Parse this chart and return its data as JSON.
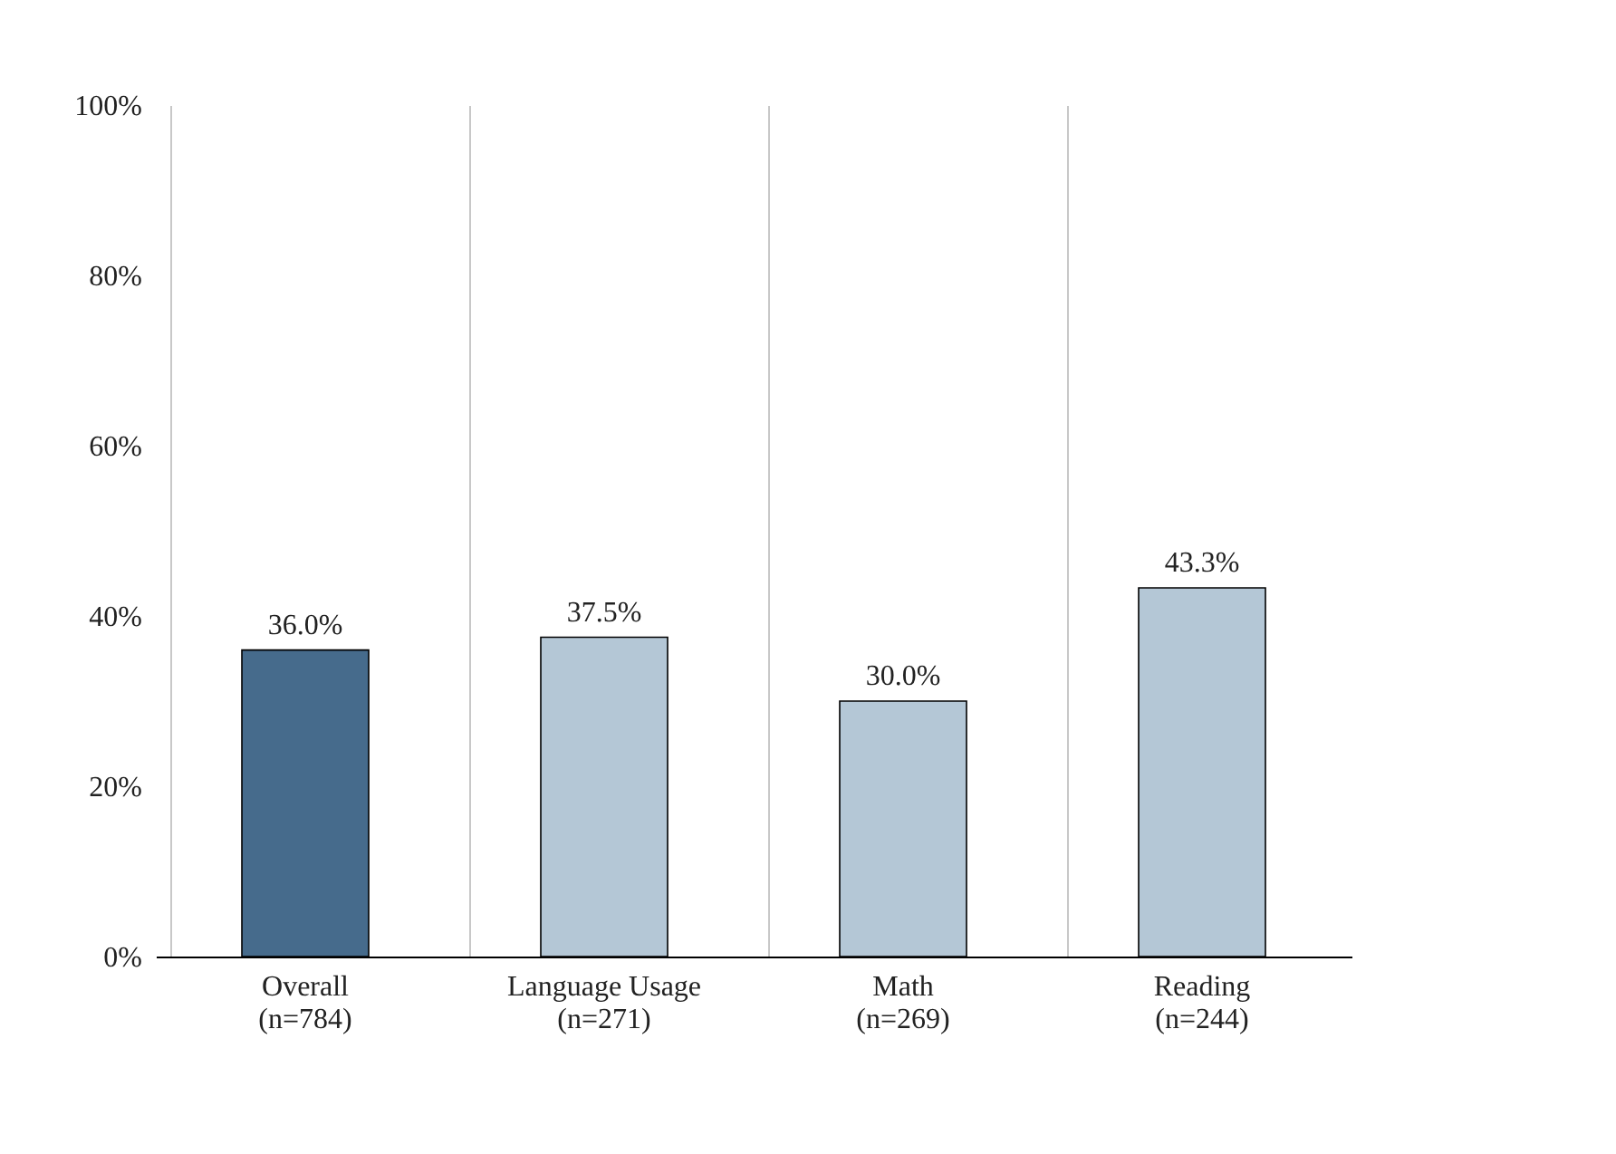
{
  "chart_data": {
    "type": "bar",
    "categories": [
      "Overall\n(n=784)",
      "Language Usage\n(n=271)",
      "Math\n(n=269)",
      "Reading\n(n=244)"
    ],
    "values": [
      36.0,
      37.5,
      30.0,
      43.3
    ],
    "colors": [
      "#466b8c",
      "#b4c7d6",
      "#b4c7d6",
      "#b4c7d6"
    ],
    "value_labels": [
      "36.0%",
      "37.5%",
      "30.0%",
      "43.3%"
    ],
    "ylim": [
      0,
      100
    ],
    "yticks": [
      {
        "value": 0,
        "label": "0%"
      },
      {
        "value": 20,
        "label": "20%"
      },
      {
        "value": 40,
        "label": "40%"
      },
      {
        "value": 60,
        "label": "60%"
      },
      {
        "value": 80,
        "label": "80%"
      },
      {
        "value": 100,
        "label": "100%"
      }
    ],
    "grid": "x"
  }
}
